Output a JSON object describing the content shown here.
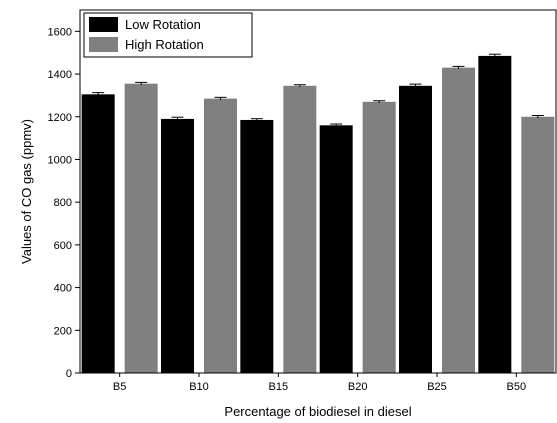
{
  "chart_data": {
    "type": "bar",
    "categories": [
      "B5",
      "B10",
      "B15",
      "B20",
      "B25",
      "B50"
    ],
    "series": [
      {
        "name": "Low Rotation",
        "color": "#000000",
        "values": [
          1305,
          1190,
          1185,
          1160,
          1345,
          1485
        ],
        "errors": [
          8,
          8,
          6,
          6,
          8,
          8
        ]
      },
      {
        "name": "High Rotation",
        "color": "#808080",
        "values": [
          1355,
          1285,
          1345,
          1270,
          1430,
          1200
        ],
        "errors": [
          6,
          6,
          5,
          5,
          6,
          6
        ]
      }
    ],
    "xlabel": "Percentage of biodiesel in diesel",
    "ylabel": "Values of CO gas (ppmv)",
    "ylim": [
      0,
      1700
    ],
    "yticks": [
      0,
      200,
      400,
      600,
      800,
      1000,
      1200,
      1400,
      1600
    ],
    "grid": false,
    "legend_position": "top-left"
  }
}
